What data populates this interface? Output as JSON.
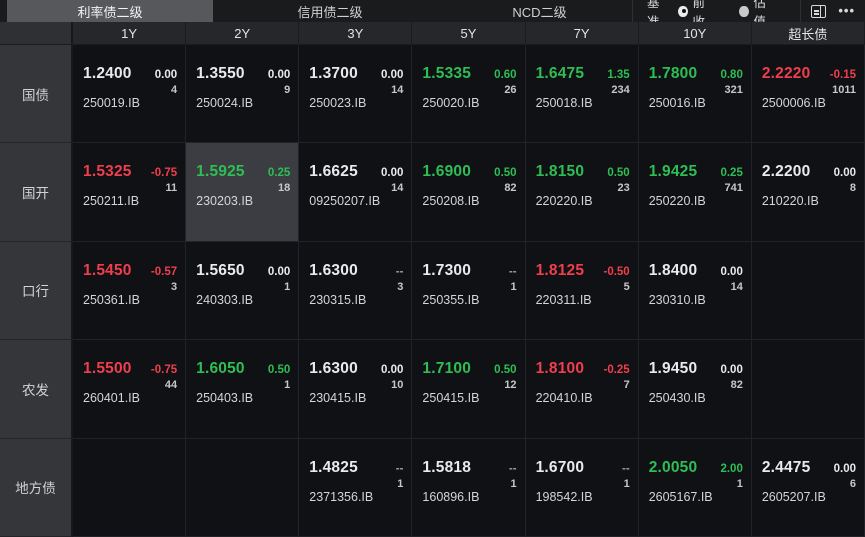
{
  "tabs": [
    {
      "label": "利率债二级",
      "active": true
    },
    {
      "label": "信用债二级",
      "active": false
    },
    {
      "label": "NCD二级",
      "active": false
    }
  ],
  "controls": {
    "benchmark_label": "基准",
    "radios": [
      {
        "label": "前收",
        "selected": true
      },
      {
        "label": "估值",
        "selected": false
      }
    ]
  },
  "icons": [
    "layout-icon",
    "more-icon"
  ],
  "columns": [
    "1Y",
    "2Y",
    "3Y",
    "5Y",
    "7Y",
    "10Y",
    "超长债"
  ],
  "colors": {
    "up": "#2fbe53",
    "down": "#f03e4d",
    "flat": "#e9eaec",
    "dash": "#9b9c9f"
  },
  "rows": [
    {
      "label": "国债",
      "cells": [
        {
          "v": "1.2400",
          "c": "0.00",
          "n": "4",
          "code": "250019.IB",
          "t": "flat"
        },
        {
          "v": "1.3550",
          "c": "0.00",
          "n": "9",
          "code": "250024.IB",
          "t": "flat"
        },
        {
          "v": "1.3700",
          "c": "0.00",
          "n": "14",
          "code": "250023.IB",
          "t": "flat"
        },
        {
          "v": "1.5335",
          "c": "0.60",
          "n": "26",
          "code": "250020.IB",
          "t": "up"
        },
        {
          "v": "1.6475",
          "c": "1.35",
          "n": "234",
          "code": "250018.IB",
          "t": "up"
        },
        {
          "v": "1.7800",
          "c": "0.80",
          "n": "321",
          "code": "250016.IB",
          "t": "up"
        },
        {
          "v": "2.2220",
          "c": "-0.15",
          "n": "1011",
          "code": "2500006.IB",
          "t": "down"
        }
      ]
    },
    {
      "label": "国开",
      "cells": [
        {
          "v": "1.5325",
          "c": "-0.75",
          "n": "11",
          "code": "250211.IB",
          "t": "down"
        },
        {
          "v": "1.5925",
          "c": "0.25",
          "n": "18",
          "code": "230203.IB",
          "t": "up",
          "sel": true
        },
        {
          "v": "1.6625",
          "c": "0.00",
          "n": "14",
          "code": "09250207.IB",
          "t": "flat"
        },
        {
          "v": "1.6900",
          "c": "0.50",
          "n": "82",
          "code": "250208.IB",
          "t": "up"
        },
        {
          "v": "1.8150",
          "c": "0.50",
          "n": "23",
          "code": "220220.IB",
          "t": "up"
        },
        {
          "v": "1.9425",
          "c": "0.25",
          "n": "741",
          "code": "250220.IB",
          "t": "up"
        },
        {
          "v": "2.2200",
          "c": "0.00",
          "n": "8",
          "code": "210220.IB",
          "t": "flat"
        }
      ]
    },
    {
      "label": "口行",
      "cells": [
        {
          "v": "1.5450",
          "c": "-0.57",
          "n": "3",
          "code": "250361.IB",
          "t": "down"
        },
        {
          "v": "1.5650",
          "c": "0.00",
          "n": "1",
          "code": "240303.IB",
          "t": "flat"
        },
        {
          "v": "1.6300",
          "c": "--",
          "n": "3",
          "code": "230315.IB",
          "t": "flat"
        },
        {
          "v": "1.7300",
          "c": "--",
          "n": "1",
          "code": "250355.IB",
          "t": "flat"
        },
        {
          "v": "1.8125",
          "c": "-0.50",
          "n": "5",
          "code": "220311.IB",
          "t": "down"
        },
        {
          "v": "1.8400",
          "c": "0.00",
          "n": "14",
          "code": "230310.IB",
          "t": "flat"
        },
        null
      ]
    },
    {
      "label": "农发",
      "cells": [
        {
          "v": "1.5500",
          "c": "-0.75",
          "n": "44",
          "code": "260401.IB",
          "t": "down"
        },
        {
          "v": "1.6050",
          "c": "0.50",
          "n": "1",
          "code": "250403.IB",
          "t": "up"
        },
        {
          "v": "1.6300",
          "c": "0.00",
          "n": "10",
          "code": "230415.IB",
          "t": "flat"
        },
        {
          "v": "1.7100",
          "c": "0.50",
          "n": "12",
          "code": "250415.IB",
          "t": "up"
        },
        {
          "v": "1.8100",
          "c": "-0.25",
          "n": "7",
          "code": "220410.IB",
          "t": "down"
        },
        {
          "v": "1.9450",
          "c": "0.00",
          "n": "82",
          "code": "250430.IB",
          "t": "flat"
        },
        null
      ]
    },
    {
      "label": "地方债",
      "cells": [
        null,
        null,
        {
          "v": "1.4825",
          "c": "--",
          "n": "1",
          "code": "2371356.IB",
          "t": "flat"
        },
        {
          "v": "1.5818",
          "c": "--",
          "n": "1",
          "code": "160896.IB",
          "t": "flat"
        },
        {
          "v": "1.6700",
          "c": "--",
          "n": "1",
          "code": "198542.IB",
          "t": "flat"
        },
        {
          "v": "2.0050",
          "c": "2.00",
          "n": "1",
          "code": "2605167.IB",
          "t": "up"
        },
        {
          "v": "2.4475",
          "c": "0.00",
          "n": "6",
          "code": "2605207.IB",
          "t": "flat"
        }
      ]
    }
  ]
}
